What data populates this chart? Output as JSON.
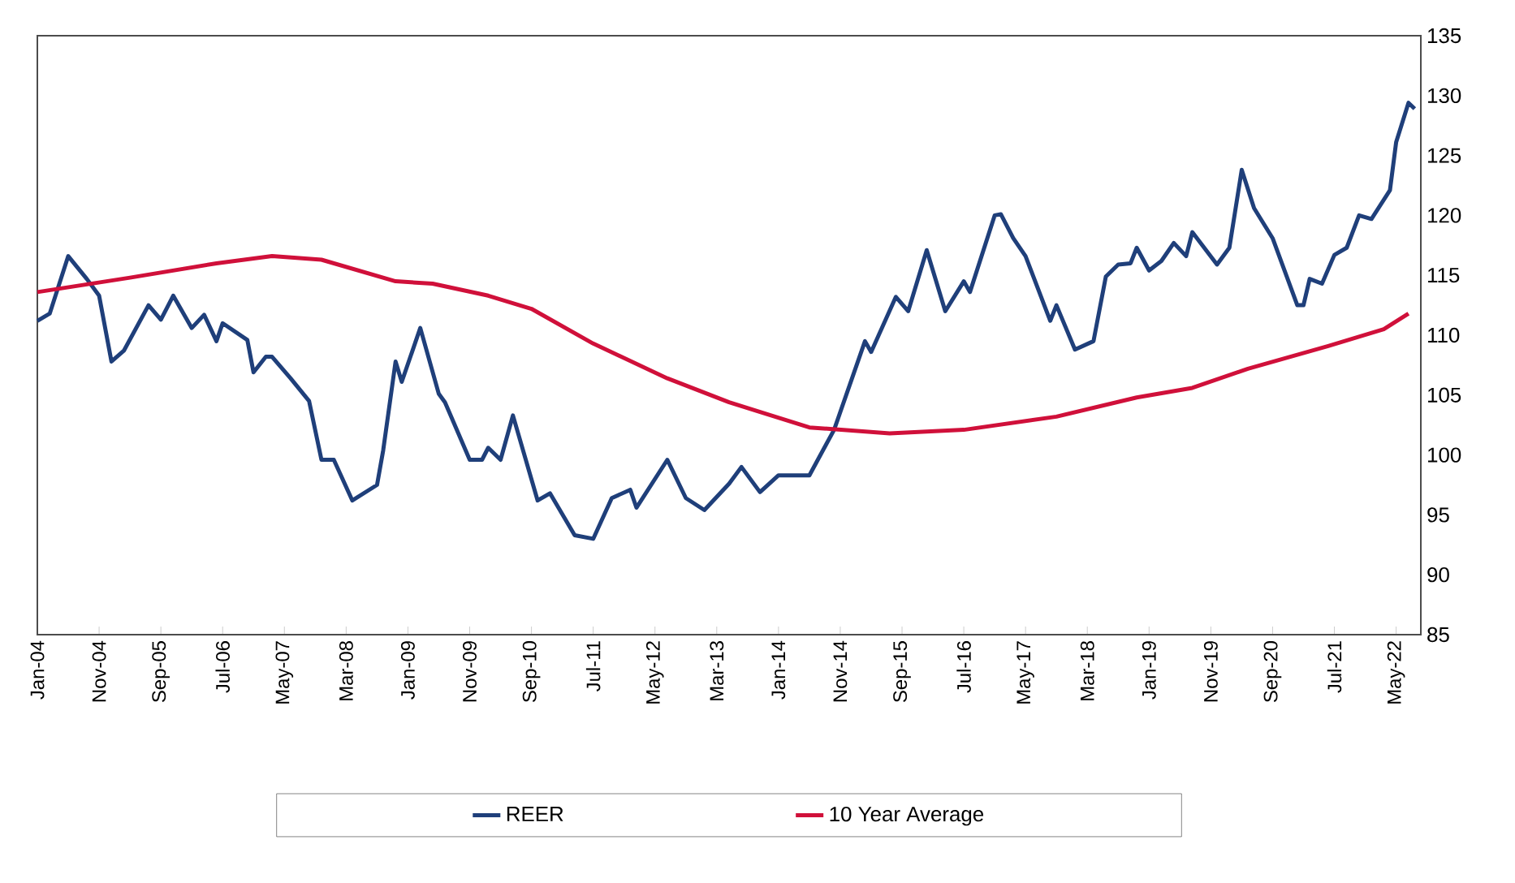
{
  "chart_data": {
    "type": "line",
    "xlim": [
      "2004-01",
      "2022-09"
    ],
    "ylim": [
      85,
      135
    ],
    "yticks": [
      85,
      90,
      95,
      100,
      105,
      110,
      115,
      120,
      125,
      130,
      135
    ],
    "xticks": [
      {
        "value": "2004-01",
        "label": "Jan-04"
      },
      {
        "value": "2004-11",
        "label": "Nov-04"
      },
      {
        "value": "2005-09",
        "label": "Sep-05"
      },
      {
        "value": "2006-07",
        "label": "Jul-06"
      },
      {
        "value": "2007-05",
        "label": "May-07"
      },
      {
        "value": "2008-03",
        "label": "Mar-08"
      },
      {
        "value": "2009-01",
        "label": "Jan-09"
      },
      {
        "value": "2009-11",
        "label": "Nov-09"
      },
      {
        "value": "2010-09",
        "label": "Sep-10"
      },
      {
        "value": "2011-07",
        "label": "Jul-11"
      },
      {
        "value": "2012-05",
        "label": "May-12"
      },
      {
        "value": "2013-03",
        "label": "Mar-13"
      },
      {
        "value": "2014-01",
        "label": "Jan-14"
      },
      {
        "value": "2014-11",
        "label": "Nov-14"
      },
      {
        "value": "2015-09",
        "label": "Sep-15"
      },
      {
        "value": "2016-07",
        "label": "Jul-16"
      },
      {
        "value": "2017-05",
        "label": "May-17"
      },
      {
        "value": "2018-03",
        "label": "Mar-18"
      },
      {
        "value": "2019-01",
        "label": "Jan-19"
      },
      {
        "value": "2019-11",
        "label": "Nov-19"
      },
      {
        "value": "2020-09",
        "label": "Sep-20"
      },
      {
        "value": "2021-07",
        "label": "Jul-21"
      },
      {
        "value": "2022-05",
        "label": "May-22"
      }
    ],
    "grid": false,
    "legend": "bottom",
    "marker": "none",
    "line_style": "solid",
    "series": [
      {
        "name": "REER",
        "color": "#1f3f7a",
        "x": [
          "2004-01",
          "2004-03",
          "2004-06",
          "2004-09",
          "2004-11",
          "2005-01",
          "2005-03",
          "2005-07",
          "2005-09",
          "2005-11",
          "2006-02",
          "2006-04",
          "2006-06",
          "2006-07",
          "2006-11",
          "2006-12",
          "2007-02",
          "2007-03",
          "2007-06",
          "2007-09",
          "2007-11",
          "2008-01",
          "2008-04",
          "2008-08",
          "2008-09",
          "2008-11",
          "2008-12",
          "2009-03",
          "2009-06",
          "2009-07",
          "2009-11",
          "2010-01",
          "2010-02",
          "2010-04",
          "2010-06",
          "2010-10",
          "2010-12",
          "2011-04",
          "2011-07",
          "2011-10",
          "2012-01",
          "2012-02",
          "2012-07",
          "2012-10",
          "2013-01",
          "2013-05",
          "2013-07",
          "2013-10",
          "2014-01",
          "2014-06",
          "2014-10",
          "2015-03",
          "2015-04",
          "2015-08",
          "2015-10",
          "2016-01",
          "2016-04",
          "2016-07",
          "2016-08",
          "2016-12",
          "2017-01",
          "2017-03",
          "2017-05",
          "2017-09",
          "2017-10",
          "2018-01",
          "2018-04",
          "2018-06",
          "2018-08",
          "2018-10",
          "2018-11",
          "2019-01",
          "2019-03",
          "2019-05",
          "2019-07",
          "2019-08",
          "2019-12",
          "2020-02",
          "2020-04",
          "2020-06",
          "2020-09",
          "2021-01",
          "2021-02",
          "2021-03",
          "2021-05",
          "2021-07",
          "2021-09",
          "2021-11",
          "2022-01",
          "2022-04",
          "2022-05",
          "2022-07",
          "2022-08"
        ],
        "values": [
          111.2,
          111.8,
          116.6,
          114.7,
          113.3,
          107.8,
          108.7,
          112.5,
          111.3,
          113.3,
          110.6,
          111.7,
          109.5,
          111.0,
          109.6,
          106.9,
          108.2,
          108.2,
          106.4,
          104.5,
          99.6,
          99.6,
          96.2,
          97.5,
          100.4,
          107.8,
          106.1,
          110.6,
          105.1,
          104.4,
          99.6,
          99.6,
          100.6,
          99.6,
          103.3,
          96.2,
          96.8,
          93.3,
          93.0,
          96.4,
          97.1,
          95.6,
          99.6,
          96.4,
          95.4,
          97.6,
          99.0,
          96.9,
          98.3,
          98.3,
          102.1,
          109.5,
          108.6,
          113.2,
          112.0,
          117.1,
          112.0,
          114.5,
          113.6,
          120.0,
          120.1,
          118.1,
          116.6,
          111.2,
          112.5,
          108.8,
          109.5,
          114.9,
          115.9,
          116.0,
          117.3,
          115.4,
          116.2,
          117.7,
          116.6,
          118.6,
          115.9,
          117.3,
          123.8,
          120.6,
          118.1,
          112.5,
          112.5,
          114.7,
          114.3,
          116.7,
          117.3,
          120.0,
          119.7,
          122.1,
          126.1,
          129.4,
          128.9
        ]
      },
      {
        "name": "10 Year Average",
        "color": "#d0103a",
        "x": [
          "2004-01",
          "2005-04",
          "2006-06",
          "2007-03",
          "2007-11",
          "2008-11",
          "2009-05",
          "2010-02",
          "2010-09",
          "2011-07",
          "2012-07",
          "2013-05",
          "2014-06",
          "2015-07",
          "2016-07",
          "2017-10",
          "2018-11",
          "2019-08",
          "2020-05",
          "2021-06",
          "2022-03",
          "2022-07"
        ],
        "values": [
          113.6,
          114.8,
          116.0,
          116.6,
          116.3,
          114.5,
          114.3,
          113.3,
          112.2,
          109.3,
          106.4,
          104.4,
          102.3,
          101.8,
          102.1,
          103.2,
          104.8,
          105.6,
          107.2,
          109.1,
          110.5,
          111.8
        ]
      }
    ]
  }
}
